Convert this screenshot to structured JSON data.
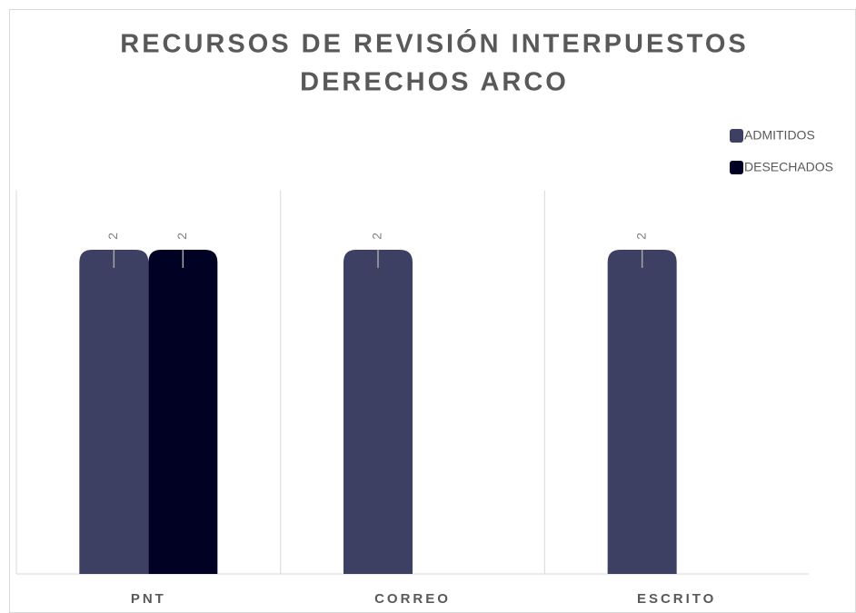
{
  "chart_data": {
    "type": "bar",
    "title": [
      "RECURSOS DE REVISIÓN INTERPUESTOS",
      "DERECHOS ARCO"
    ],
    "categories": [
      "PNT",
      "CORREO",
      "ESCRITO"
    ],
    "series": [
      {
        "name": "ADMITIDOS",
        "color": "#3d4063",
        "values": [
          2,
          2,
          2
        ]
      },
      {
        "name": "DESECHADOS",
        "color": "#010124",
        "values": [
          2,
          null,
          null
        ]
      }
    ],
    "legend": "top-right"
  }
}
